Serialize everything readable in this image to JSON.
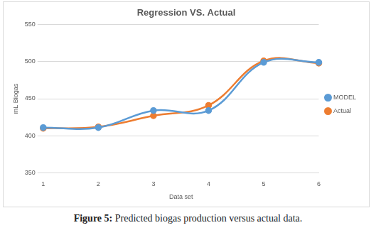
{
  "chart_data": {
    "type": "line",
    "title": "Regression VS. Actual",
    "x_label": "Data set",
    "y_label": "mL Biogas",
    "categories": [
      "1",
      "2",
      "3",
      "4",
      "5",
      "6"
    ],
    "series": [
      {
        "name": "MODEL",
        "color": "#5b9bd5",
        "values": [
          411,
          411,
          434,
          434,
          499,
          499
        ]
      },
      {
        "name": "Actual",
        "color": "#ed7d31",
        "values": [
          410,
          412,
          427,
          441,
          501,
          498
        ]
      }
    ],
    "ylim": [
      350,
      550
    ],
    "yticks": [
      350,
      400,
      450,
      500,
      550
    ],
    "grid": true,
    "legend": "right",
    "marker": "circle",
    "caption": "Figure 5: Predicted biogas production versus actual data."
  }
}
